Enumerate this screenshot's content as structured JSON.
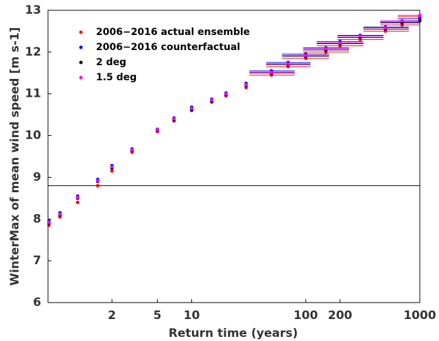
{
  "chart_data": {
    "type": "scatter",
    "x_label": "Return time (years)",
    "y_label": "WinterMax of mean wind speed [m s-1]",
    "log_x": true,
    "xlim": [
      0.55,
      1000
    ],
    "xticks": [
      2,
      5,
      10,
      100,
      200,
      1000
    ],
    "ylim": [
      6,
      13
    ],
    "yticks": [
      6,
      7,
      8,
      9,
      10,
      11,
      12,
      13
    ],
    "hline": 8.8,
    "legend": "upper-left",
    "x": [
      0.56,
      0.7,
      1,
      1.5,
      2,
      3,
      5,
      7,
      10,
      15,
      20,
      30,
      50,
      70,
      100,
      150,
      200,
      300,
      500,
      700,
      1000
    ],
    "series": [
      {
        "name": "2006−2016 actual ensemble",
        "color": "#ff0000",
        "values": [
          7.85,
          8.05,
          8.4,
          8.8,
          9.15,
          9.6,
          10.1,
          10.35,
          10.6,
          10.8,
          10.95,
          11.15,
          11.45,
          11.65,
          11.85,
          12.0,
          12.15,
          12.3,
          12.5,
          12.65,
          12.85
        ],
        "x_low": [
          null,
          null,
          null,
          null,
          null,
          null,
          null,
          null,
          null,
          null,
          null,
          null,
          32,
          45,
          62,
          95,
          125,
          190,
          320,
          450,
          640
        ],
        "x_high": [
          null,
          null,
          null,
          null,
          null,
          null,
          null,
          null,
          null,
          null,
          null,
          null,
          80,
          110,
          160,
          240,
          320,
          480,
          800,
          1000,
          1000
        ]
      },
      {
        "name": "2006−2016 counterfactual",
        "color": "#0000ff",
        "values": [
          7.95,
          8.15,
          8.55,
          8.95,
          9.28,
          9.68,
          10.15,
          10.42,
          10.68,
          10.87,
          11.02,
          11.25,
          11.55,
          11.75,
          11.95,
          12.1,
          12.25,
          12.4,
          12.6,
          12.72,
          12.8
        ],
        "x_low": [
          null,
          null,
          null,
          null,
          null,
          null,
          null,
          null,
          null,
          null,
          null,
          null,
          32,
          45,
          62,
          95,
          125,
          190,
          320,
          450,
          640
        ],
        "x_high": [
          null,
          null,
          null,
          null,
          null,
          null,
          null,
          null,
          null,
          null,
          null,
          null,
          80,
          110,
          160,
          240,
          320,
          480,
          800,
          1000,
          1000
        ]
      },
      {
        "name": "2 deg",
        "color": "#000000",
        "values": [
          7.9,
          8.1,
          8.5,
          8.9,
          9.22,
          9.64,
          10.12,
          10.38,
          10.62,
          10.82,
          10.98,
          11.2,
          11.5,
          11.7,
          11.9,
          12.05,
          12.2,
          12.35,
          12.55,
          12.7,
          12.75
        ],
        "x_low": [
          null,
          null,
          null,
          null,
          null,
          null,
          null,
          null,
          null,
          null,
          null,
          null,
          32,
          45,
          62,
          95,
          125,
          190,
          320,
          450,
          640
        ],
        "x_high": [
          null,
          null,
          null,
          null,
          null,
          null,
          null,
          null,
          null,
          null,
          null,
          null,
          80,
          110,
          160,
          240,
          320,
          480,
          800,
          1000,
          1000
        ]
      },
      {
        "name": "1.5 deg",
        "color": "#ff00ff",
        "values": [
          7.92,
          8.12,
          8.52,
          8.92,
          9.25,
          9.66,
          10.14,
          10.4,
          10.65,
          10.85,
          11.0,
          11.22,
          11.52,
          11.72,
          11.92,
          12.08,
          12.22,
          12.38,
          12.58,
          12.75,
          12.88
        ],
        "x_low": [
          null,
          null,
          null,
          null,
          null,
          null,
          null,
          null,
          null,
          null,
          null,
          null,
          32,
          45,
          62,
          95,
          125,
          190,
          320,
          450,
          640
        ],
        "x_high": [
          null,
          null,
          null,
          null,
          null,
          null,
          null,
          null,
          null,
          null,
          null,
          null,
          80,
          110,
          160,
          240,
          320,
          480,
          800,
          1000,
          1000
        ]
      }
    ]
  }
}
